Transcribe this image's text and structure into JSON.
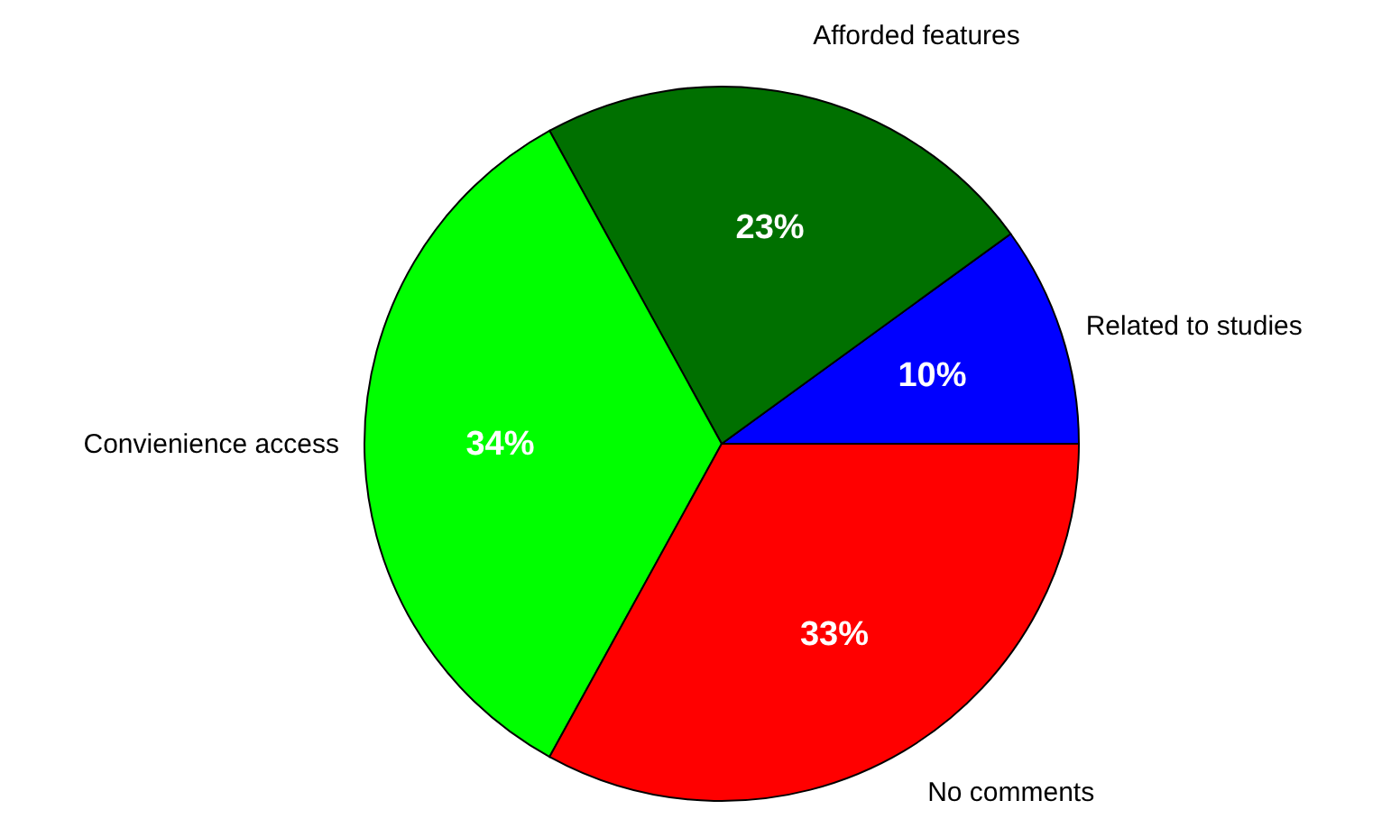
{
  "chart_data": {
    "type": "pie",
    "categories": [
      "Related to studies",
      "Afforded features",
      "Convienience access",
      "No comments"
    ],
    "values": [
      10,
      23,
      34,
      33
    ],
    "colors": [
      "#0000ff",
      "#007000",
      "#00ff00",
      "#ff0000"
    ],
    "value_labels": [
      "10%",
      "23%",
      "34%",
      "33%"
    ]
  }
}
